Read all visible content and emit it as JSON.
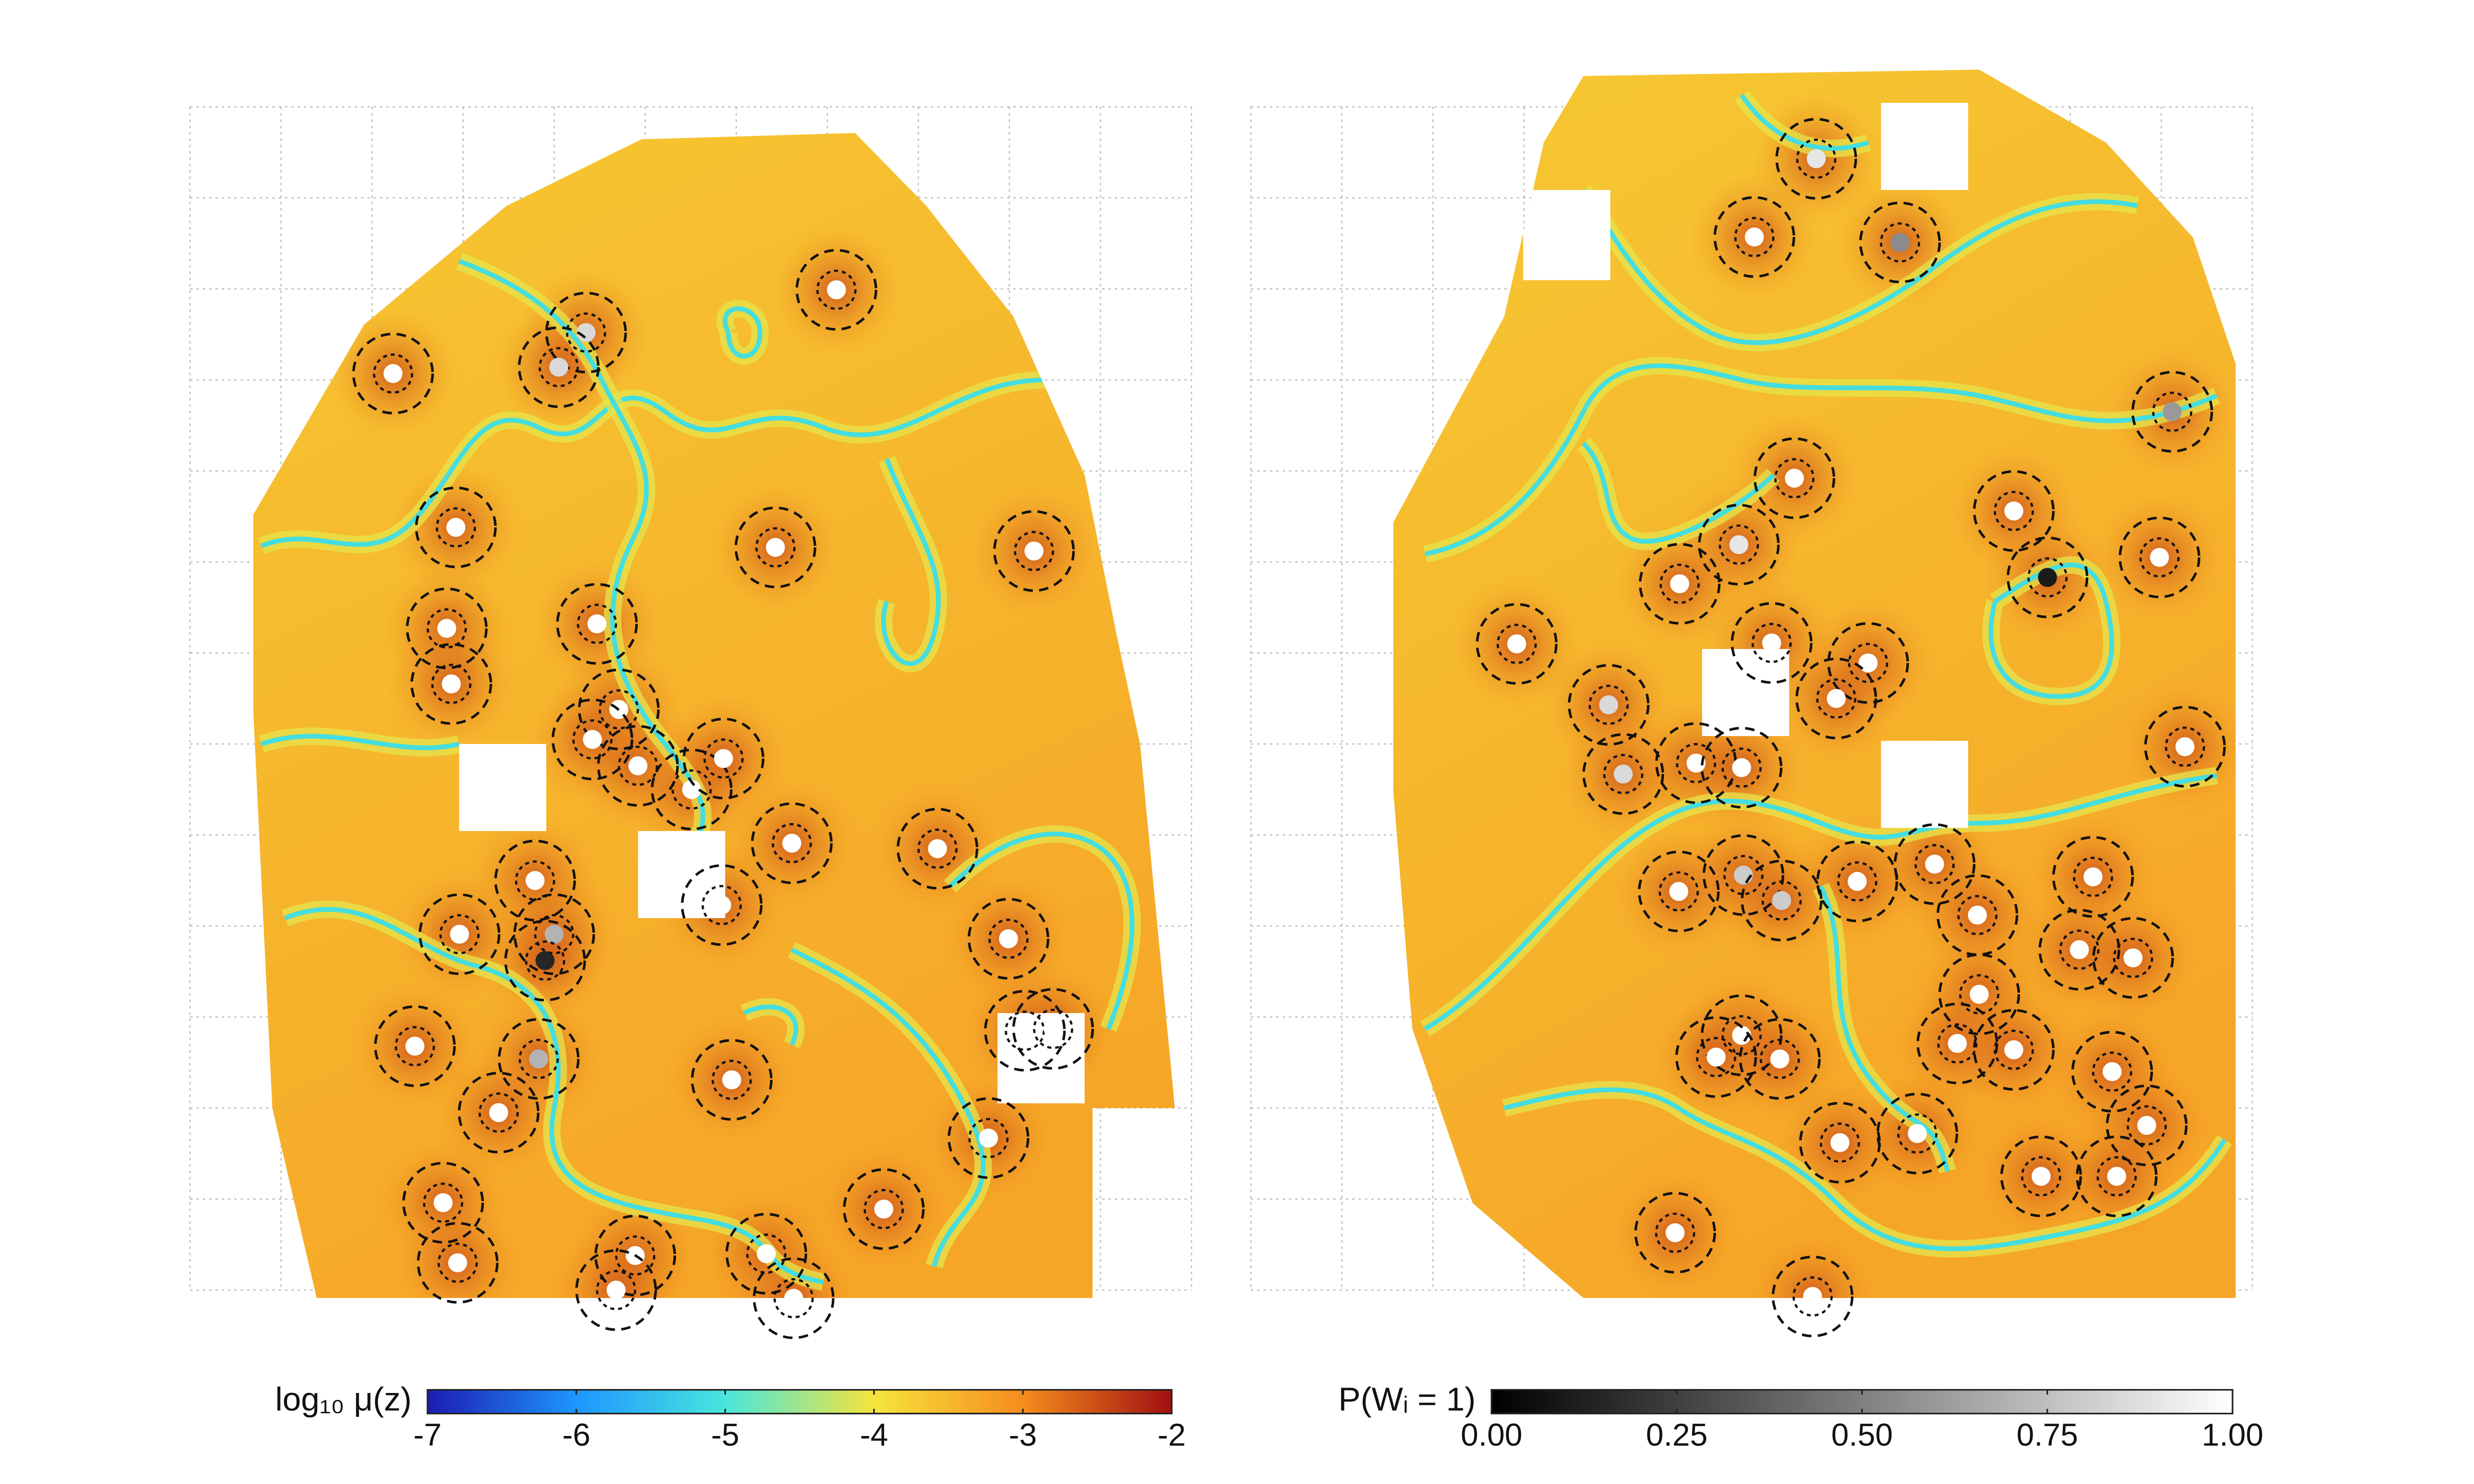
{
  "chart_data": [
    {
      "type": "heatmap",
      "xlim": [
        0,
        11
      ],
      "ylim": [
        0,
        13
      ],
      "grid": true,
      "points": {
        "x": [
          7.1,
          2.23,
          4.35,
          4.05,
          2.92,
          6.43,
          9.27,
          2.82,
          4.47,
          2.87,
          4.71,
          4.42,
          4.92,
          5.51,
          5.86,
          6.61,
          3.79,
          2.96,
          4.0,
          3.9,
          5.84,
          8.21,
          8.99,
          9.17,
          9.48,
          2.47,
          3.83,
          5.95,
          3.39,
          8.77,
          7.62,
          2.78,
          2.94,
          4.89,
          4.68,
          6.33,
          6.63
        ],
        "y": [
          10.99,
          10.07,
          10.52,
          10.14,
          8.38,
          8.16,
          8.12,
          7.27,
          7.32,
          6.66,
          6.38,
          6.05,
          5.76,
          5.5,
          5.84,
          4.91,
          4.5,
          3.91,
          3.91,
          3.62,
          4.23,
          4.85,
          3.86,
          2.85,
          2.87,
          2.68,
          2.54,
          2.31,
          1.95,
          1.67,
          0.89,
          0.96,
          0.3,
          0.38,
          0.0,
          0.4,
          -0.09
        ],
        "values": [
          1,
          1,
          0.85,
          0.85,
          1,
          1,
          1,
          1,
          1,
          1,
          1,
          1,
          1,
          1,
          1,
          1,
          1,
          1,
          0.7,
          0.15,
          1,
          1,
          1,
          1,
          1,
          1,
          0.7,
          1,
          1,
          1,
          1,
          1,
          1,
          1,
          1,
          1,
          1
        ]
      },
      "colorbar": {
        "label": "log₁₀ μ(z)",
        "lim": [
          -7,
          -2
        ],
        "ticks": [
          -7,
          -6,
          -5,
          -4,
          -3,
          -2
        ],
        "colormap": [
          "#1c1cb0",
          "#1e96ff",
          "#48e6dc",
          "#f6e43c",
          "#f68c1e",
          "#a01010"
        ]
      }
    },
    {
      "type": "heatmap",
      "xlim": [
        0,
        11
      ],
      "ylim": [
        0,
        13
      ],
      "grid": true,
      "points": {
        "x": [
          6.21,
          5.53,
          7.13,
          10.12,
          5.97,
          8.38,
          5.36,
          4.71,
          8.75,
          9.98,
          2.92,
          5.72,
          6.78,
          6.43,
          3.93,
          4.09,
          4.89,
          5.39,
          10.26,
          7.51,
          4.7,
          5.41,
          5.83,
          6.66,
          7.98,
          9.25,
          9.1,
          9.69,
          8.0,
          7.76,
          8.38,
          5.39,
          5.11,
          5.81,
          9.46,
          9.84,
          6.47,
          7.32,
          8.68,
          9.51,
          4.66,
          6.17
        ],
        "y": [
          12.43,
          11.57,
          11.51,
          9.65,
          8.92,
          8.56,
          8.19,
          7.76,
          7.83,
          8.05,
          7.1,
          7.11,
          6.89,
          6.5,
          6.43,
          5.67,
          5.79,
          5.74,
          5.97,
          4.68,
          4.38,
          4.56,
          4.28,
          4.49,
          4.12,
          4.54,
          3.74,
          3.65,
          3.25,
          2.71,
          2.64,
          2.8,
          2.56,
          2.54,
          2.4,
          1.81,
          1.62,
          1.72,
          1.25,
          1.25,
          0.63,
          -0.07
        ],
        "values": [
          0.9,
          1,
          0.55,
          0.6,
          1,
          1,
          0.9,
          1,
          0.1,
          1,
          1,
          1,
          1,
          1,
          0.85,
          0.85,
          1,
          1,
          1,
          1,
          1,
          0.8,
          0.8,
          1,
          1,
          1,
          1,
          1,
          1,
          1,
          1,
          1,
          1,
          1,
          1,
          1,
          1,
          1,
          1,
          1,
          1,
          1
        ]
      },
      "colorbar": {
        "label": "P(Wᵢ = 1)",
        "lim": [
          0,
          1
        ],
        "ticks": [
          {
            "value": 0,
            "label": "0.00"
          },
          {
            "value": 0.25,
            "label": "0.25"
          },
          {
            "value": 0.5,
            "label": "0.50"
          },
          {
            "value": 0.75,
            "label": "0.75"
          },
          {
            "value": 1,
            "label": "1.00"
          }
        ],
        "colormap": [
          "#000000",
          "#ffffff"
        ]
      }
    }
  ]
}
